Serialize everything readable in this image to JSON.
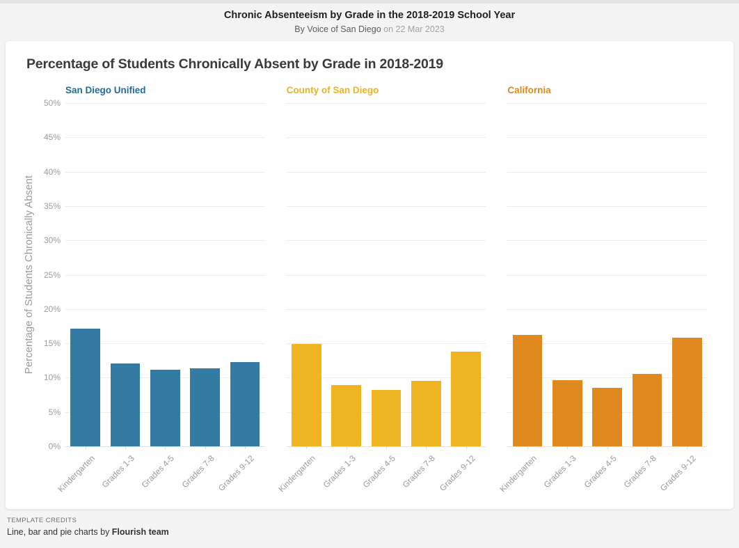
{
  "header": {
    "title": "Chronic Absenteeism by Grade in the 2018-2019 School Year",
    "byline": "By Voice of San Diego",
    "date_text": "on 22 Mar 2023"
  },
  "chart_data": {
    "type": "bar",
    "layout": "small-multiples",
    "title": "Percentage of Students Chronically Absent by Grade in 2018-2019",
    "categories": [
      "Kindergarten",
      "Grades 1-3",
      "Grades 4-5",
      "Grades 7-8",
      "Grades 9-12"
    ],
    "series": [
      {
        "name": "San Diego Unified",
        "color": "#347BA3",
        "label_color": "#1C6DA0",
        "values": [
          17.1,
          12.1,
          11.2,
          11.4,
          12.3
        ]
      },
      {
        "name": "County of San Diego",
        "color": "#EEB421",
        "label_color": "#EDB421",
        "values": [
          14.9,
          8.9,
          8.2,
          9.5,
          13.8
        ]
      },
      {
        "name": "California",
        "color": "#E0891E",
        "label_color": "#E2861B",
        "values": [
          16.2,
          9.6,
          8.5,
          10.5,
          15.8
        ]
      }
    ],
    "xlabel": "",
    "ylabel": "Percentage of Students Chronically Absent",
    "ylim": [
      0,
      50
    ],
    "ytick_step": 5,
    "yticks": [
      "0%",
      "5%",
      "10%",
      "15%",
      "20%",
      "25%",
      "30%",
      "35%",
      "40%",
      "45%",
      "50%"
    ],
    "grid": true,
    "gridline_color": "#ececec",
    "legend_position": "none"
  },
  "footer": {
    "credits_label": "TEMPLATE CREDITS",
    "credits_text": "Line, bar and pie charts by ",
    "credits_team": "Flourish team"
  }
}
